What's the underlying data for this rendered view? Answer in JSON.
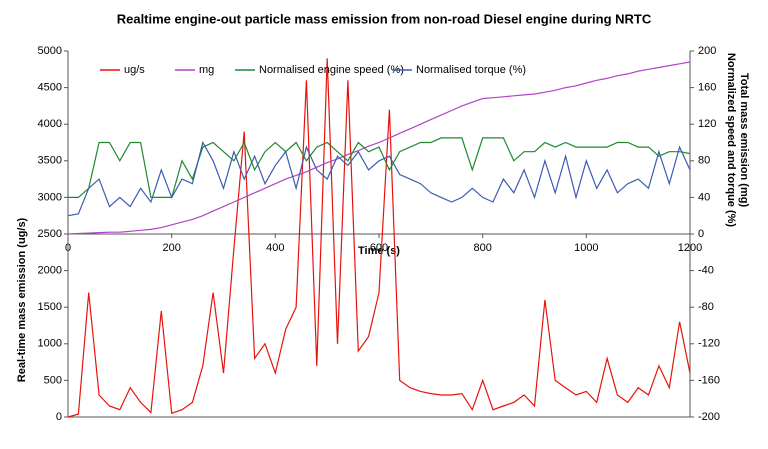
{
  "chart_data": {
    "type": "line",
    "title": "Realtime engine-out particle mass emission from non-road Diesel engine during NRTC",
    "xlabel": "Time (s)",
    "ylabel": "Real-time mass emission (ug/s)",
    "y2label": [
      "Total mass emission (mg)",
      "Normalized speed and torque (%)"
    ],
    "xlim": [
      0,
      1200
    ],
    "xticks": [
      0,
      200,
      400,
      600,
      800,
      1000,
      1200
    ],
    "ylim": [
      0,
      5000
    ],
    "yticks": [
      0,
      500,
      1000,
      1500,
      2000,
      2500,
      3000,
      3500,
      4000,
      4500,
      5000
    ],
    "y2lim": [
      -200,
      200
    ],
    "y2ticks": [
      -200,
      -160,
      -120,
      -80,
      -40,
      0,
      40,
      80,
      120,
      160,
      200
    ],
    "grid": false,
    "legend": "top",
    "x": [
      0,
      20,
      40,
      60,
      80,
      100,
      120,
      140,
      160,
      180,
      200,
      220,
      240,
      260,
      280,
      300,
      320,
      340,
      360,
      380,
      400,
      420,
      440,
      460,
      480,
      500,
      520,
      540,
      560,
      580,
      600,
      620,
      640,
      660,
      680,
      700,
      720,
      740,
      760,
      780,
      800,
      820,
      840,
      860,
      880,
      900,
      920,
      940,
      960,
      980,
      1000,
      1020,
      1040,
      1060,
      1080,
      1100,
      1120,
      1140,
      1160,
      1180,
      1200
    ],
    "series": [
      {
        "name": "ug/s",
        "color": "#e8120c",
        "axis": "y",
        "values": [
          0,
          40,
          1700,
          300,
          150,
          100,
          400,
          200,
          60,
          1450,
          50,
          100,
          200,
          700,
          1700,
          600,
          2300,
          3900,
          800,
          1000,
          600,
          1200,
          1500,
          4600,
          700,
          4900,
          1000,
          4600,
          900,
          1100,
          1700,
          4200,
          500,
          400,
          350,
          320,
          300,
          300,
          320,
          100,
          500,
          100,
          150,
          200,
          300,
          150,
          1600,
          500,
          400,
          300,
          350,
          200,
          800,
          300,
          200,
          400,
          300,
          700,
          400,
          1300,
          600
        ]
      },
      {
        "name": "mg",
        "color": "#b044c8",
        "axis": "y2",
        "values": [
          0,
          0.5,
          1,
          1.5,
          2,
          2,
          3,
          4,
          5,
          7,
          10,
          13,
          16,
          20,
          25,
          30,
          35,
          40,
          45,
          50,
          55,
          60,
          64,
          68,
          73,
          78,
          82,
          87,
          91,
          96,
          100,
          105,
          110,
          115,
          120,
          125,
          130,
          135,
          140,
          144,
          148,
          149,
          150,
          151,
          152,
          153,
          155,
          157,
          160,
          162,
          165,
          168,
          170,
          173,
          175,
          178,
          180,
          182,
          184,
          186,
          188
        ]
      },
      {
        "name": "Normalised engine speed (%)",
        "color": "#1e8a2a",
        "axis": "y2",
        "values": [
          40,
          40,
          50,
          100,
          100,
          80,
          100,
          100,
          40,
          40,
          40,
          80,
          60,
          95,
          100,
          90,
          80,
          100,
          70,
          90,
          100,
          90,
          100,
          80,
          95,
          100,
          90,
          80,
          100,
          90,
          95,
          70,
          90,
          95,
          100,
          100,
          105,
          105,
          105,
          70,
          105,
          105,
          105,
          80,
          90,
          90,
          100,
          95,
          100,
          95,
          95,
          95,
          95,
          100,
          100,
          95,
          95,
          85,
          90,
          90,
          88
        ]
      },
      {
        "name": "Normalised torque (%)",
        "color": "#3a5cb0",
        "axis": "y2",
        "values": [
          20,
          22,
          50,
          60,
          30,
          40,
          30,
          50,
          35,
          70,
          40,
          60,
          55,
          100,
          80,
          50,
          90,
          60,
          85,
          55,
          75,
          90,
          50,
          95,
          70,
          60,
          85,
          75,
          90,
          70,
          80,
          85,
          65,
          60,
          55,
          45,
          40,
          35,
          40,
          50,
          40,
          35,
          60,
          45,
          70,
          40,
          80,
          45,
          85,
          40,
          80,
          50,
          70,
          45,
          55,
          60,
          50,
          90,
          55,
          95,
          70
        ]
      }
    ]
  }
}
